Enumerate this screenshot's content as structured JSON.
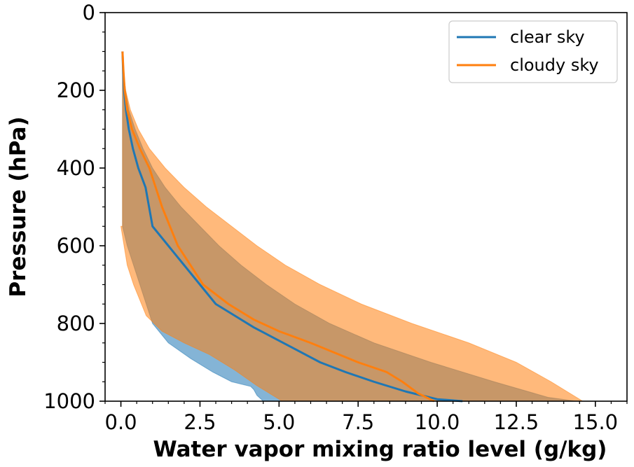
{
  "chart_data": {
    "type": "line",
    "title": "",
    "xlabel": "Water vapor mixing ratio level (g/kg)",
    "ylabel": "Pressure (hPa)",
    "xlim": [
      -0.5,
      16.0
    ],
    "ylim": [
      1000,
      0
    ],
    "y_inverted": true,
    "xticks": [
      0.0,
      2.5,
      5.0,
      7.5,
      10.0,
      12.5,
      15.0
    ],
    "xtick_labels": [
      "0.0",
      "2.5",
      "5.0",
      "7.5",
      "10.0",
      "12.5",
      "15.0"
    ],
    "yticks": [
      0,
      200,
      400,
      600,
      800,
      1000
    ],
    "ytick_labels": [
      "0",
      "200",
      "400",
      "600",
      "800",
      "1000"
    ],
    "grid": false,
    "legend_position": "top-right",
    "series": [
      {
        "name": "clear sky",
        "color": "#1f77b4",
        "mean": {
          "x": [
            0.05,
            0.07,
            0.1,
            0.16,
            0.25,
            0.38,
            0.55,
            0.78,
            1.0,
            1.5,
            2.0,
            2.5,
            3.0,
            3.6,
            4.2,
            4.9,
            5.6,
            6.3,
            7.1,
            8.0,
            9.0,
            10.0,
            10.8
          ],
          "y": [
            100,
            150,
            200,
            250,
            300,
            350,
            400,
            450,
            550,
            600,
            650,
            700,
            750,
            780,
            810,
            840,
            870,
            900,
            925,
            950,
            975,
            995,
            1000
          ]
        },
        "band": {
          "upper_x": [
            0.05,
            0.07,
            0.15,
            0.25,
            0.45,
            0.7,
            1.0,
            1.4,
            1.9,
            2.5,
            3.1,
            3.8,
            4.6,
            5.5,
            6.6,
            8.0,
            9.8,
            11.8,
            13.5,
            14.4
          ],
          "upper_y": [
            100,
            150,
            200,
            250,
            300,
            350,
            400,
            450,
            500,
            550,
            600,
            650,
            700,
            750,
            800,
            850,
            900,
            950,
            990,
            1000
          ],
          "lower_x": [
            0.05,
            0.05,
            0.05,
            0.05,
            0.05,
            0.05,
            0.2,
            0.4,
            0.6,
            1.0,
            1.5,
            2.2,
            2.9,
            3.5,
            4.1,
            4.2,
            4.3,
            4.5
          ],
          "lower_y": [
            100,
            200,
            300,
            400,
            500,
            550,
            600,
            650,
            700,
            800,
            850,
            890,
            925,
            950,
            962,
            970,
            985,
            1000
          ]
        }
      },
      {
        "name": "cloudy sky",
        "color": "#ff7f0e",
        "mean": {
          "x": [
            0.05,
            0.08,
            0.12,
            0.2,
            0.35,
            0.6,
            0.9,
            1.3,
            1.8,
            2.6,
            3.4,
            4.2,
            5.0,
            6.0,
            7.5,
            8.4,
            8.9,
            9.4,
            9.9
          ],
          "y": [
            100,
            150,
            200,
            250,
            300,
            350,
            400,
            500,
            600,
            700,
            750,
            790,
            820,
            850,
            900,
            925,
            950,
            980,
            1000
          ]
        },
        "band": {
          "upper_x": [
            0.05,
            0.08,
            0.15,
            0.3,
            0.55,
            0.9,
            1.4,
            2.0,
            2.7,
            3.5,
            4.3,
            5.2,
            6.3,
            7.6,
            9.2,
            11.0,
            12.5,
            13.6,
            14.6
          ],
          "upper_y": [
            100,
            150,
            200,
            250,
            300,
            350,
            400,
            450,
            500,
            550,
            600,
            650,
            700,
            750,
            800,
            850,
            900,
            950,
            1000
          ],
          "lower_x": [
            0.05,
            0.05,
            0.05,
            0.05,
            0.05,
            0.05,
            0.0,
            0.2,
            0.4,
            0.8,
            1.3,
            2.0,
            2.8,
            3.6,
            4.3,
            5.1
          ],
          "lower_y": [
            100,
            200,
            300,
            400,
            500,
            550,
            550,
            650,
            700,
            780,
            820,
            850,
            880,
            920,
            960,
            1000
          ]
        }
      }
    ]
  }
}
